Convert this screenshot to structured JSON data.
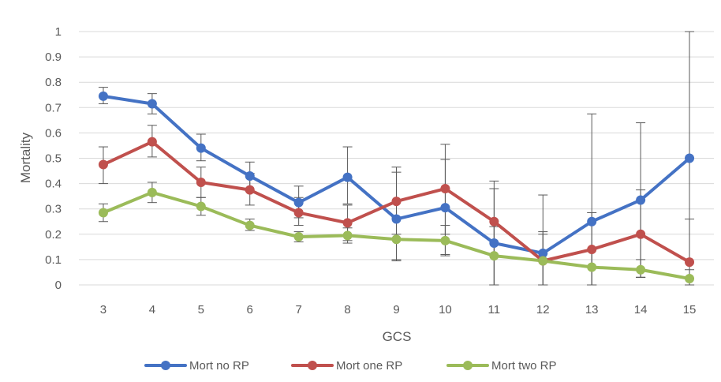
{
  "chart_data": {
    "type": "line",
    "title": "",
    "xlabel": "GCS",
    "ylabel": "Mortality",
    "categories": [
      "3",
      "4",
      "5",
      "6",
      "7",
      "8",
      "9",
      "10",
      "11",
      "12",
      "13",
      "14",
      "15"
    ],
    "ylim": [
      0,
      1
    ],
    "yticks": [
      "0",
      "0.1",
      "0.2",
      "0.3",
      "0.4",
      "0.5",
      "0.6",
      "0.7",
      "0.8",
      "0.9",
      "1"
    ],
    "grid": true,
    "legend_position": "bottom",
    "series": [
      {
        "name": "Mort no RP",
        "color": "#4472c4",
        "values": [
          0.745,
          0.715,
          0.54,
          0.43,
          0.325,
          0.425,
          0.26,
          0.305,
          0.165,
          0.125,
          0.25,
          0.335,
          0.5
        ],
        "error_low": [
          0.715,
          0.675,
          0.49,
          0.37,
          0.265,
          0.32,
          0.1,
          0.12,
          0.0,
          0.0,
          0.0,
          0.03,
          0.0
        ],
        "error_high": [
          0.78,
          0.755,
          0.595,
          0.485,
          0.39,
          0.545,
          0.465,
          0.495,
          0.38,
          0.355,
          0.675,
          0.64,
          1.0
        ]
      },
      {
        "name": "Mort one RP",
        "color": "#c0504d",
        "values": [
          0.475,
          0.565,
          0.405,
          0.375,
          0.285,
          0.245,
          0.33,
          0.38,
          0.25,
          0.095,
          0.14,
          0.2,
          0.09
        ],
        "error_low": [
          0.4,
          0.505,
          0.345,
          0.315,
          0.235,
          0.175,
          0.2,
          0.2,
          0.0,
          0.0,
          0.0,
          0.03,
          0.0
        ],
        "error_high": [
          0.545,
          0.63,
          0.465,
          0.44,
          0.345,
          0.315,
          0.445,
          0.555,
          0.41,
          0.21,
          0.285,
          0.375,
          0.26
        ]
      },
      {
        "name": "Mort two RP",
        "color": "#9bbb59",
        "values": [
          0.285,
          0.365,
          0.31,
          0.235,
          0.19,
          0.195,
          0.18,
          0.175,
          0.115,
          0.095,
          0.07,
          0.06,
          0.025
        ],
        "error_low": [
          0.25,
          0.325,
          0.275,
          0.215,
          0.17,
          0.165,
          0.095,
          0.115,
          0.0,
          0.0,
          0.0,
          0.03,
          0.0
        ],
        "error_high": [
          0.32,
          0.405,
          0.345,
          0.26,
          0.21,
          0.225,
          0.265,
          0.235,
          0.23,
          0.2,
          0.14,
          0.1,
          0.06
        ]
      }
    ]
  }
}
